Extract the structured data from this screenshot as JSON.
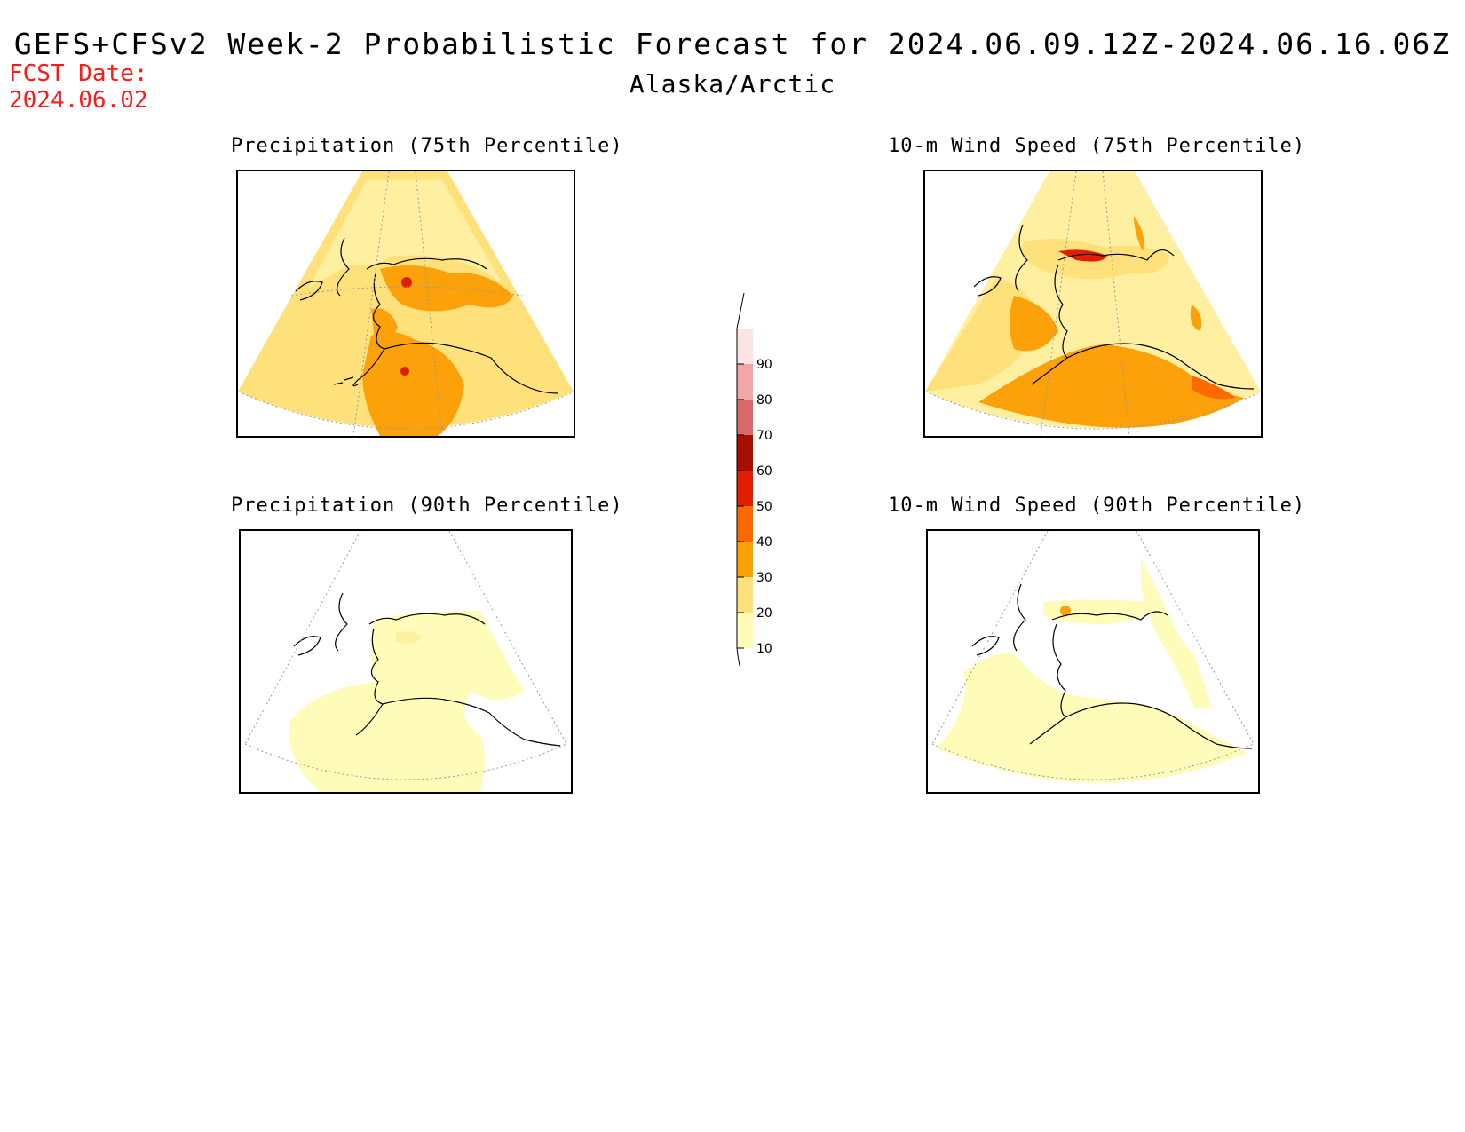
{
  "header": {
    "title": "GEFS+CFSv2 Week-2 Probabilistic Forecast for 2024.06.09.12Z-2024.06.16.06Z",
    "region": "Alaska/Arctic",
    "fcst_label": "FCST Date:",
    "fcst_date": "2024.06.02"
  },
  "panels": [
    {
      "id": "precip75",
      "title": "Precipitation (75th Percentile)"
    },
    {
      "id": "wind75",
      "title": "10-m Wind Speed (75th Percentile)"
    },
    {
      "id": "precip90",
      "title": "Precipitation (90th Percentile)"
    },
    {
      "id": "wind90",
      "title": "10-m Wind Speed (90th Percentile)"
    }
  ],
  "colorbar": {
    "levels": [
      "10",
      "20",
      "30",
      "40",
      "50",
      "60",
      "70",
      "80",
      "90"
    ],
    "colors": [
      "#fffbb8",
      "#fee17a",
      "#fca10a",
      "#fb6a00",
      "#e01f00",
      "#a50f00",
      "#d86a6a",
      "#f2a6a6",
      "#fce3e3"
    ]
  }
}
